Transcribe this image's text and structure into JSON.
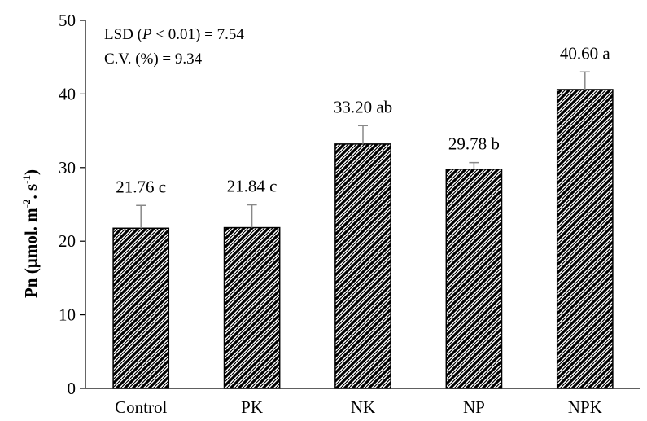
{
  "chart_data": {
    "type": "bar",
    "categories": [
      "Control",
      "PK",
      "NK",
      "NP",
      "NPK"
    ],
    "values": [
      21.76,
      21.84,
      33.2,
      29.78,
      40.6
    ],
    "errors": [
      3.1,
      3.1,
      2.5,
      0.9,
      2.4
    ],
    "labels": [
      "21.76 c",
      "21.84 c",
      "33.20 ab",
      "29.78 b",
      "40.60 a"
    ],
    "ylim": [
      0,
      50
    ],
    "yticks": [
      "0",
      "10",
      "20",
      "30",
      "40",
      "50"
    ],
    "ylabel": {
      "main": "Pn (µmol. m",
      "sup1": "-2",
      "mid": ". s",
      "sup2": "-1",
      "end": ")"
    },
    "annotations": {
      "lsd": {
        "prefix": "LSD (",
        "italic": "P",
        "suffix": " < 0.01) = 7.54"
      },
      "cv": "C.V. (%) = 9.34"
    },
    "fill": "hatched black/white diagonal",
    "grid": false,
    "legend": "none"
  }
}
